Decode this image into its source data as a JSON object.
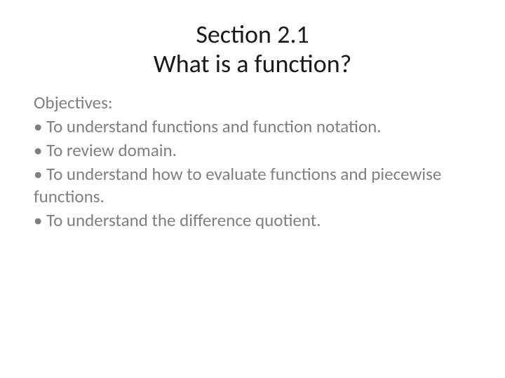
{
  "slide": {
    "title": {
      "line1": "Section 2.1",
      "line2": "What is a function?"
    },
    "objectives_label": "Objectives:",
    "bullets": [
      "To understand functions and function notation.",
      "To review domain.",
      "To understand how to evaluate functions and piecewise functions.",
      "To understand the difference quotient."
    ]
  },
  "colors": {
    "title_color": "#1a1a1a",
    "body_color": "#7f7f7f",
    "background": "#ffffff"
  },
  "typography": {
    "title_fontsize": 36,
    "body_fontsize": 25,
    "font_family": "Calibri"
  }
}
